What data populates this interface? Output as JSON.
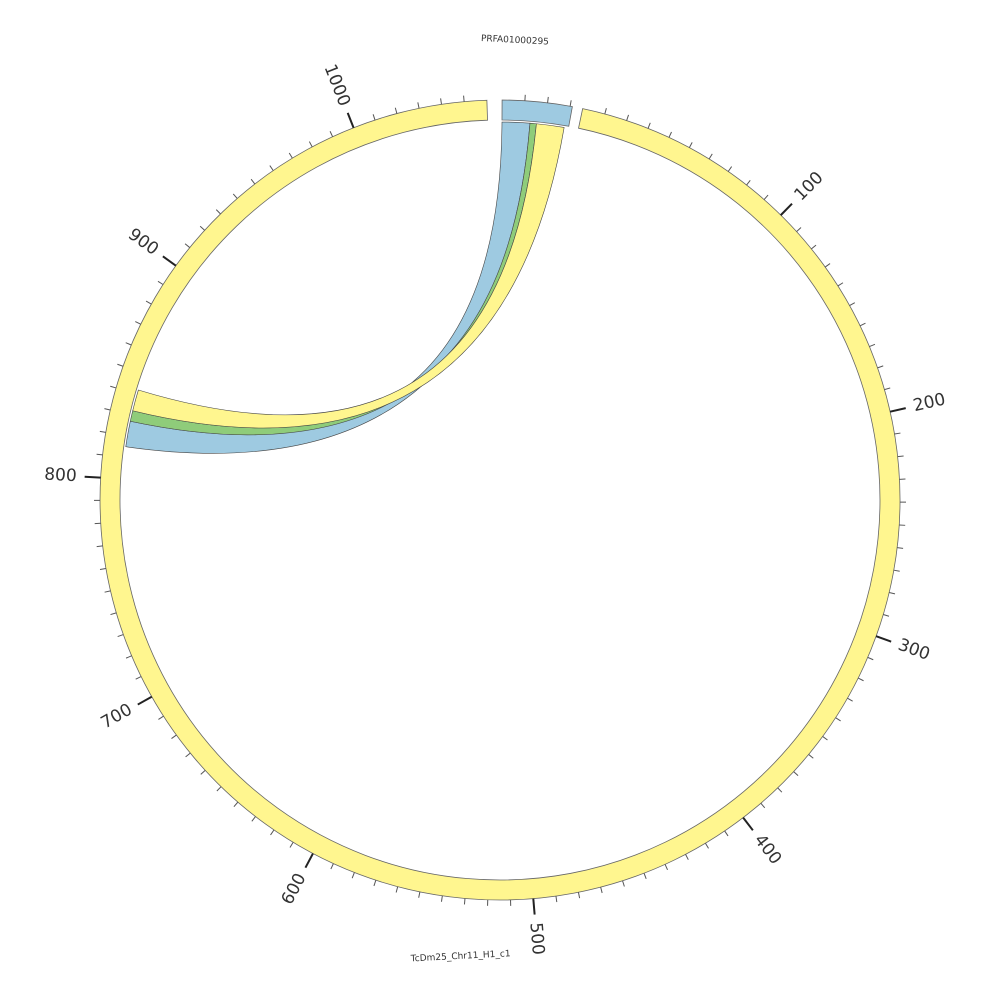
{
  "chart_data": {
    "type": "chord",
    "segments": [
      {
        "name": "PRFA01000295",
        "length": 31,
        "color": "#9ecae1"
      },
      {
        "name": "TcDm25_Chr11_H1_c1",
        "length": 1060,
        "color": "#fff68f"
      }
    ],
    "ticks": [
      100,
      200,
      300,
      400,
      500,
      600,
      700,
      800,
      900,
      1000
    ],
    "minor_tick_interval": 10,
    "links": [
      {
        "source": [
          0,
          0,
          13
        ],
        "target": [
          1,
          815,
          827
        ],
        "color": "#9ecae1"
      },
      {
        "source": [
          0,
          13,
          16
        ],
        "target": [
          1,
          827,
          832
        ],
        "color": "#8fcc7a"
      },
      {
        "source": [
          0,
          16,
          29
        ],
        "target": [
          1,
          832,
          842
        ],
        "color": "#fff68f"
      }
    ]
  }
}
